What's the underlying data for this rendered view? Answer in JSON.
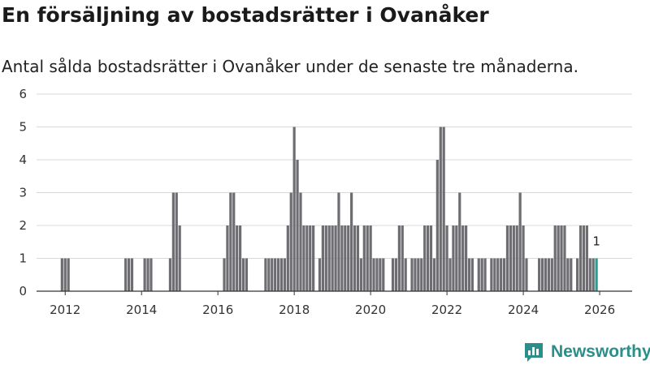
{
  "title": "En försäljning av bostadsrätter i Ovanåker",
  "subtitle": "Antal sålda bostadsrätter i Ovanåker under de senaste tre månaderna.",
  "brand": {
    "name": "Newsworthy",
    "logo_icon": "newsworthy-chart-icon"
  },
  "colors": {
    "bar": "#6d6d72",
    "highlight": "#2a9d8f",
    "grid": "#d9d9d9",
    "axis": "#333333"
  },
  "chart_data": {
    "type": "bar",
    "title": "En försäljning av bostadsrätter i Ovanåker",
    "xlabel": "",
    "ylabel": "",
    "ylim": [
      0,
      6
    ],
    "yticks": [
      0,
      1,
      2,
      3,
      4,
      5,
      6
    ],
    "xticks": [
      2012,
      2014,
      2016,
      2018,
      2020,
      2022,
      2024,
      2026
    ],
    "x_start": 2011.25,
    "step": 0.08333,
    "values": [
      0,
      0,
      0,
      0,
      0,
      0,
      0,
      0,
      1,
      1,
      1,
      0,
      0,
      0,
      0,
      0,
      0,
      0,
      0,
      0,
      0,
      0,
      0,
      0,
      0,
      0,
      0,
      0,
      1,
      1,
      1,
      0,
      0,
      0,
      1,
      1,
      1,
      0,
      0,
      0,
      0,
      0,
      1,
      3,
      3,
      2,
      0,
      0,
      0,
      0,
      0,
      0,
      0,
      0,
      0,
      0,
      0,
      0,
      0,
      1,
      2,
      3,
      3,
      2,
      2,
      1,
      1,
      0,
      0,
      0,
      0,
      0,
      1,
      1,
      1,
      1,
      1,
      1,
      1,
      2,
      3,
      5,
      4,
      3,
      2,
      2,
      2,
      2,
      0,
      1,
      2,
      2,
      2,
      2,
      2,
      3,
      2,
      2,
      2,
      3,
      2,
      2,
      1,
      2,
      2,
      2,
      1,
      1,
      1,
      1,
      0,
      0,
      1,
      1,
      2,
      2,
      1,
      0,
      1,
      1,
      1,
      1,
      2,
      2,
      2,
      1,
      4,
      5,
      5,
      2,
      1,
      2,
      2,
      3,
      2,
      2,
      1,
      1,
      0,
      1,
      1,
      1,
      0,
      1,
      1,
      1,
      1,
      1,
      2,
      2,
      2,
      2,
      3,
      2,
      1,
      0,
      0,
      0,
      1,
      1,
      1,
      1,
      1,
      2,
      2,
      2,
      2,
      1,
      1,
      0,
      1,
      2,
      2,
      2,
      1,
      1,
      1
    ],
    "highlight_last": true,
    "annotations": [
      {
        "label": "1",
        "target": "last"
      }
    ]
  }
}
